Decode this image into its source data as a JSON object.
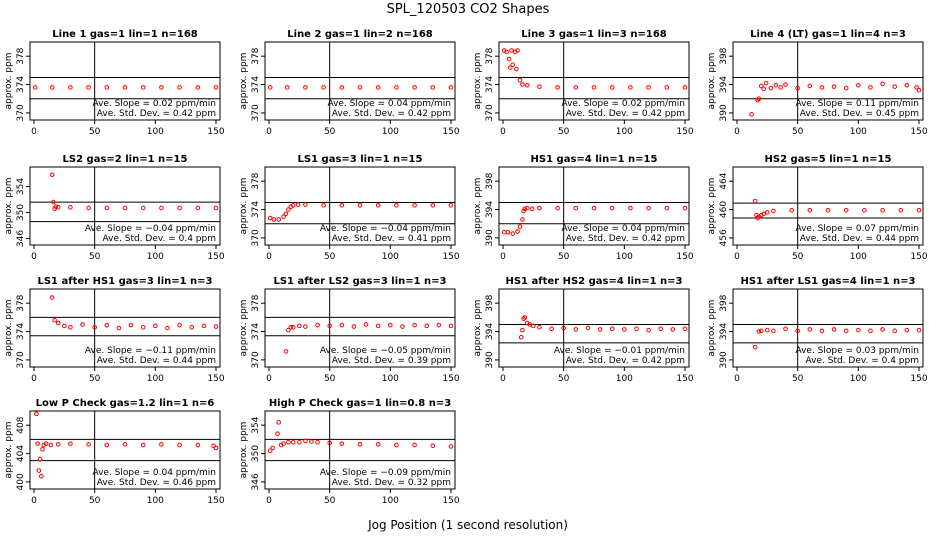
{
  "page": {
    "title": "SPL_120503  CO2 Shapes",
    "xlabel": "Jog Position (1 second resolution)"
  },
  "colors": {
    "points": "#ff0000",
    "axis": "#000000"
  },
  "chart_data": [
    {
      "type": "scatter",
      "title": "Line 1 gas=1 lin=1 n=168",
      "ylabel": "approx. ppm",
      "xlim": [
        0,
        150
      ],
      "ylim": [
        369,
        380
      ],
      "yticks": [
        370,
        374,
        378
      ],
      "xticks": [
        0,
        50,
        100,
        150
      ],
      "hlines": [
        375,
        372
      ],
      "vline": 50,
      "slope": "Ave. Slope = 0.02  ppm/min",
      "stddev": "Ave. Std. Dev. = 0.42  ppm",
      "series": [
        {
          "x": [
            1,
            15,
            30,
            45,
            60,
            75,
            90,
            105,
            120,
            135,
            150
          ],
          "y": [
            373.6,
            373.6,
            373.6,
            373.6,
            373.6,
            373.6,
            373.6,
            373.6,
            373.6,
            373.6,
            373.6
          ]
        }
      ]
    },
    {
      "type": "scatter",
      "title": "Line 2 gas=1 lin=2 n=168",
      "ylabel": "approx. ppm",
      "xlim": [
        0,
        150
      ],
      "ylim": [
        369,
        380
      ],
      "yticks": [
        370,
        374,
        378
      ],
      "xticks": [
        0,
        50,
        100,
        150
      ],
      "hlines": [
        375,
        372
      ],
      "vline": 50,
      "slope": "Ave. Slope = 0.04  ppm/min",
      "stddev": "Ave. Std. Dev. = 0.42  ppm",
      "series": [
        {
          "x": [
            1,
            15,
            30,
            45,
            60,
            75,
            90,
            105,
            120,
            135,
            150
          ],
          "y": [
            373.6,
            373.6,
            373.6,
            373.6,
            373.6,
            373.6,
            373.6,
            373.6,
            373.6,
            373.6,
            373.6
          ]
        }
      ]
    },
    {
      "type": "scatter",
      "title": "Line 3 gas=1 lin=3 n=168",
      "ylabel": "approx. ppm",
      "xlim": [
        0,
        150
      ],
      "ylim": [
        369,
        380
      ],
      "yticks": [
        370,
        374,
        378
      ],
      "xticks": [
        0,
        50,
        100,
        150
      ],
      "hlines": [
        375,
        372
      ],
      "vline": 50,
      "slope": "Ave. Slope = 0.02  ppm/min",
      "stddev": "Ave. Std. Dev. = 0.42  ppm",
      "series": [
        {
          "x": [
            1,
            3,
            5,
            6,
            7,
            8,
            10,
            11,
            12,
            14,
            16,
            20,
            30,
            45,
            60,
            75,
            90,
            105,
            120,
            135,
            150
          ],
          "y": [
            378.8,
            378.6,
            377.6,
            376.4,
            378.8,
            376.8,
            378.6,
            376.2,
            378.8,
            374.6,
            374.0,
            373.9,
            373.7,
            373.6,
            373.6,
            373.6,
            373.6,
            373.6,
            373.6,
            373.6,
            373.6
          ]
        }
      ]
    },
    {
      "type": "scatter",
      "title": "Line 4 (LT) gas=1 lin=4 n=3",
      "ylabel": "approx. ppm",
      "xlim": [
        0,
        150
      ],
      "ylim": [
        389,
        400
      ],
      "yticks": [
        390,
        394,
        398
      ],
      "xticks": [
        0,
        50,
        100,
        150
      ],
      "hlines": [
        395,
        392
      ],
      "vline": 50,
      "slope": "Ave. Slope = 0.11  ppm/min",
      "stddev": "Ave. Std. Dev. = 0.45  ppm",
      "series": [
        {
          "x": [
            12,
            17,
            18,
            20,
            22,
            24,
            28,
            32,
            36,
            40,
            50,
            60,
            70,
            80,
            90,
            100,
            110,
            120,
            130,
            140,
            148,
            150
          ],
          "y": [
            389.8,
            391.8,
            392.0,
            393.8,
            393.4,
            394.2,
            393.5,
            393.9,
            393.6,
            394.0,
            393.5,
            393.8,
            393.6,
            393.7,
            393.5,
            393.9,
            393.6,
            394.1,
            393.7,
            393.9,
            393.6,
            393.2
          ]
        }
      ]
    },
    {
      "type": "scatter",
      "title": "LS2 gas=2 lin=1 n=15",
      "ylabel": "approx. ppm",
      "xlim": [
        0,
        150
      ],
      "ylim": [
        345,
        357
      ],
      "yticks": [
        346,
        350,
        354
      ],
      "xticks": [
        0,
        50,
        100,
        150
      ],
      "hlines": [
        351.6,
        348.6
      ],
      "vline": 50,
      "slope": "Ave. Slope = −0.04  ppm/min",
      "stddev": "Ave. Std. Dev. = 0.4  ppm",
      "series": [
        {
          "x": [
            15,
            16,
            17,
            18,
            20,
            30,
            45,
            60,
            75,
            90,
            105,
            120,
            135,
            150
          ],
          "y": [
            355.8,
            351.6,
            350.6,
            350.9,
            350.8,
            350.8,
            350.7,
            350.7,
            350.7,
            350.7,
            350.7,
            350.7,
            350.7,
            350.7
          ]
        }
      ]
    },
    {
      "type": "scatter",
      "title": "LS1 gas=3 lin=1 n=15",
      "ylabel": "approx. ppm",
      "xlim": [
        0,
        150
      ],
      "ylim": [
        369,
        380
      ],
      "yticks": [
        370,
        374,
        378
      ],
      "xticks": [
        0,
        50,
        100,
        150
      ],
      "hlines": [
        375,
        372
      ],
      "vline": 50,
      "slope": "Ave. Slope = −0.04  ppm/min",
      "stddev": "Ave. Std. Dev. = 0.41  ppm",
      "series": [
        {
          "x": [
            1,
            4,
            8,
            12,
            14,
            16,
            18,
            20,
            24,
            30,
            45,
            60,
            75,
            90,
            105,
            120,
            135,
            150
          ],
          "y": [
            372.8,
            372.6,
            372.6,
            373.0,
            373.4,
            374.0,
            374.4,
            374.6,
            374.7,
            374.7,
            374.6,
            374.6,
            374.6,
            374.6,
            374.6,
            374.6,
            374.6,
            374.6
          ]
        }
      ]
    },
    {
      "type": "scatter",
      "title": "HS1 gas=4 lin=1 n=15",
      "ylabel": "approx. ppm",
      "xlim": [
        0,
        150
      ],
      "ylim": [
        389,
        400
      ],
      "yticks": [
        390,
        394,
        398
      ],
      "xticks": [
        0,
        50,
        100,
        150
      ],
      "hlines": [
        395,
        392
      ],
      "vline": 50,
      "slope": "Ave. Slope = 0.04  ppm/min",
      "stddev": "Ave. Std. Dev. = 0.42  ppm",
      "series": [
        {
          "x": [
            1,
            4,
            8,
            12,
            14,
            16,
            17,
            18,
            20,
            24,
            30,
            45,
            60,
            75,
            90,
            105,
            120,
            135,
            150
          ],
          "y": [
            390.8,
            390.8,
            390.6,
            390.9,
            391.6,
            392.6,
            393.8,
            394.1,
            394.2,
            394.1,
            394.2,
            394.2,
            394.2,
            394.2,
            394.2,
            394.2,
            394.2,
            394.2,
            394.2
          ]
        }
      ]
    },
    {
      "type": "scatter",
      "title": "HS2 gas=5 lin=1 n=15",
      "ylabel": "approx. ppm",
      "xlim": [
        0,
        150
      ],
      "ylim": [
        455,
        466
      ],
      "yticks": [
        456,
        460,
        464
      ],
      "xticks": [
        0,
        50,
        100,
        150
      ],
      "hlines": [
        460.9,
        458.8
      ],
      "vline": 50,
      "slope": "Ave. Slope = 0.07  ppm/min",
      "stddev": "Ave. Std. Dev. = 0.44  ppm",
      "series": [
        {
          "x": [
            15,
            16,
            17,
            18,
            20,
            22,
            25,
            30,
            45,
            60,
            75,
            90,
            105,
            120,
            135,
            150
          ],
          "y": [
            461.2,
            459.2,
            458.8,
            459.0,
            459.2,
            459.4,
            459.6,
            459.8,
            459.9,
            459.9,
            459.9,
            459.9,
            459.9,
            459.9,
            459.9,
            459.9
          ]
        }
      ]
    },
    {
      "type": "scatter",
      "title": "LS1 after HS1 gas=3 lin=1 n=3",
      "ylabel": "approx. ppm",
      "xlim": [
        0,
        150
      ],
      "ylim": [
        369,
        380
      ],
      "yticks": [
        370,
        374,
        378
      ],
      "xticks": [
        0,
        50,
        100,
        150
      ],
      "hlines": [
        376,
        373.4
      ],
      "vline": 50,
      "slope": "Ave. Slope = −0.11  ppm/min",
      "stddev": "Ave. Std. Dev. = 0.44  ppm",
      "series": [
        {
          "x": [
            15,
            17,
            20,
            25,
            30,
            40,
            50,
            60,
            70,
            80,
            90,
            100,
            110,
            120,
            130,
            140,
            150
          ],
          "y": [
            378.8,
            375.6,
            375.2,
            374.8,
            374.6,
            375.0,
            374.6,
            374.9,
            374.5,
            374.9,
            374.6,
            374.8,
            374.5,
            374.9,
            374.6,
            374.8,
            374.7
          ]
        }
      ]
    },
    {
      "type": "scatter",
      "title": "LS1 after LS2 gas=3 lin=1 n=3",
      "ylabel": "approx. ppm",
      "xlim": [
        0,
        150
      ],
      "ylim": [
        369,
        380
      ],
      "yticks": [
        370,
        374,
        378
      ],
      "xticks": [
        0,
        50,
        100,
        150
      ],
      "hlines": [
        376,
        373.4
      ],
      "vline": 50,
      "slope": "Ave. Slope = −0.05  ppm/min",
      "stddev": "Ave. Std. Dev. = 0.39  ppm",
      "series": [
        {
          "x": [
            14,
            16,
            18,
            20,
            25,
            30,
            40,
            50,
            60,
            70,
            80,
            90,
            100,
            110,
            120,
            130,
            140,
            150
          ],
          "y": [
            371.2,
            374.2,
            374.6,
            374.6,
            374.8,
            374.7,
            374.9,
            374.8,
            374.9,
            374.7,
            375.0,
            374.8,
            374.9,
            374.7,
            374.9,
            374.8,
            374.9,
            374.8
          ]
        }
      ]
    },
    {
      "type": "scatter",
      "title": "HS1 after HS2 gas=4 lin=1 n=3",
      "ylabel": "approx. ppm",
      "xlim": [
        0,
        150
      ],
      "ylim": [
        389,
        400
      ],
      "yticks": [
        390,
        394,
        398
      ],
      "xticks": [
        0,
        50,
        100,
        150
      ],
      "hlines": [
        395,
        392.4
      ],
      "vline": 50,
      "slope": "Ave. Slope = −0.01  ppm/min",
      "stddev": "Ave. Std. Dev. = 0.42  ppm",
      "series": [
        {
          "x": [
            15,
            16,
            17,
            18,
            20,
            22,
            25,
            30,
            40,
            50,
            60,
            70,
            80,
            90,
            100,
            110,
            120,
            130,
            140,
            150
          ],
          "y": [
            393.2,
            394.2,
            395.8,
            396.0,
            395.2,
            395.0,
            394.8,
            394.6,
            394.4,
            394.5,
            394.3,
            394.5,
            394.3,
            394.4,
            394.3,
            394.4,
            394.2,
            394.4,
            394.3,
            394.4
          ]
        }
      ]
    },
    {
      "type": "scatter",
      "title": "HS1 after LS1 gas=4 lin=1 n=3",
      "ylabel": "approx. ppm",
      "xlim": [
        0,
        150
      ],
      "ylim": [
        389,
        400
      ],
      "yticks": [
        390,
        394,
        398
      ],
      "xticks": [
        0,
        50,
        100,
        150
      ],
      "hlines": [
        395,
        392.4
      ],
      "vline": 50,
      "slope": "Ave. Slope = 0.03  ppm/min",
      "stddev": "Ave. Std. Dev. = 0.4  ppm",
      "series": [
        {
          "x": [
            15,
            18,
            20,
            25,
            30,
            40,
            50,
            60,
            70,
            80,
            90,
            100,
            110,
            120,
            130,
            140,
            150
          ],
          "y": [
            391.8,
            394.0,
            394.1,
            394.2,
            394.1,
            394.4,
            394.1,
            394.3,
            394.1,
            394.3,
            394.1,
            394.2,
            394.1,
            394.3,
            394.1,
            394.2,
            394.2
          ]
        }
      ]
    },
    {
      "type": "scatter",
      "title": "Low P Check gas=1.2 lin=1 n=6",
      "ylabel": "approx. ppm",
      "xlim": [
        0,
        150
      ],
      "ylim": [
        399,
        410
      ],
      "yticks": [
        400,
        404,
        408
      ],
      "xticks": [
        0,
        50,
        100,
        150
      ],
      "hlines": [
        406,
        403
      ],
      "vline": 50,
      "slope": "Ave. Slope = 0.04  ppm/min",
      "stddev": "Ave. Std. Dev. = 0.46  ppm",
      "series": [
        {
          "x": [
            2,
            3,
            4,
            5,
            6,
            7,
            8,
            10,
            14,
            20,
            30,
            45,
            60,
            75,
            90,
            105,
            120,
            135,
            148,
            150
          ],
          "y": [
            409.6,
            405.4,
            401.6,
            403.2,
            400.8,
            404.6,
            405.2,
            405.4,
            405.2,
            405.3,
            405.4,
            405.3,
            405.2,
            405.3,
            405.2,
            405.3,
            405.2,
            405.2,
            405.1,
            404.8
          ]
        }
      ]
    },
    {
      "type": "scatter",
      "title": "High P Check gas=1 lin=0.8 n=3",
      "ylabel": "approx. ppm",
      "xlim": [
        0,
        150
      ],
      "ylim": [
        345,
        356
      ],
      "yticks": [
        346,
        350,
        354
      ],
      "xticks": [
        0,
        50,
        100,
        150
      ],
      "hlines": [
        352,
        349
      ],
      "vline": 50,
      "slope": "Ave. Slope = −0.09  ppm/min",
      "stddev": "Ave. Std. Dev. = 0.32  ppm",
      "series": [
        {
          "x": [
            1,
            3,
            7,
            8,
            10,
            12,
            16,
            20,
            25,
            30,
            35,
            40,
            50,
            60,
            75,
            90,
            105,
            120,
            135,
            150
          ],
          "y": [
            350.4,
            350.8,
            352.8,
            354.4,
            351.2,
            351.4,
            351.6,
            351.6,
            351.6,
            351.8,
            351.7,
            351.6,
            351.5,
            351.4,
            351.3,
            351.3,
            351.2,
            351.2,
            351.1,
            351.0
          ]
        }
      ]
    }
  ]
}
